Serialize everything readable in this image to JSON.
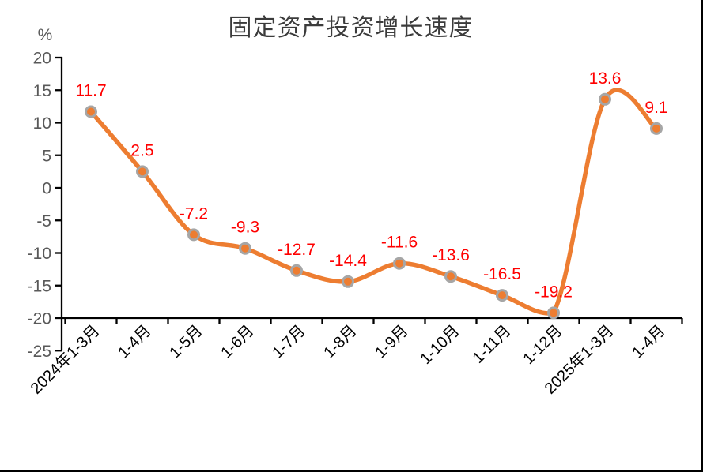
{
  "page": {
    "background": "#ffffff",
    "frame_border_color": "#000000"
  },
  "chart_data": {
    "type": "line",
    "title": "固定资产投资增长速度",
    "ylabel": "%",
    "xlabel": "",
    "categories": [
      "2024年1-3月",
      "1-4月",
      "1-5月",
      "1-6月",
      "1-7月",
      "1-8月",
      "1-9月",
      "1-10月",
      "1-11月",
      "1-12月",
      "2025年1-3月",
      "1-4月"
    ],
    "values": [
      11.7,
      2.5,
      -7.2,
      -9.3,
      -12.7,
      -14.4,
      -11.6,
      -13.6,
      -16.5,
      -19.2,
      13.6,
      9.1
    ],
    "data_labels": [
      "11.7",
      "2.5",
      "-7.2",
      "-9.3",
      "-12.7",
      "-14.4",
      "-11.6",
      "-13.6",
      "-16.5",
      "-19.2",
      "13.6",
      "9.1"
    ],
    "ylim": [
      -25,
      20
    ],
    "ytick_step": 5,
    "ytick_labels": [
      "20",
      "15",
      "10",
      "5",
      "0",
      "-5",
      "-10",
      "-15",
      "-20",
      "-25"
    ],
    "x_axis_cross_value": -20,
    "grid": false,
    "legend": "none",
    "smooth": true,
    "marker": "circle",
    "colors": {
      "line": "#ED7D31",
      "marker_fill": "#ED7D31",
      "marker_stroke": "#A6A6A6",
      "data_label": "#FF0000",
      "axis": "#000000",
      "y_tick_text": "#595959",
      "x_tick_text": "#000000",
      "title_text": "#3b3b3b"
    }
  }
}
